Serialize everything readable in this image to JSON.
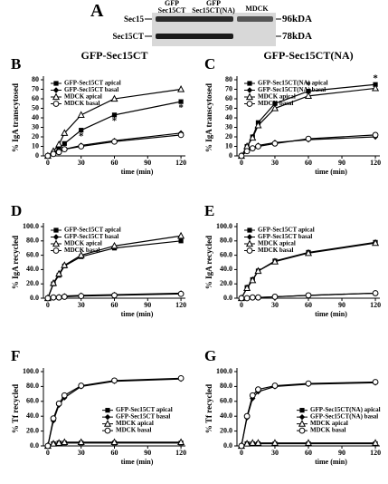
{
  "blot": {
    "label": "A",
    "lanes": [
      "GFP Sec15CT",
      "GFP Sec15CT(NA)",
      "MDCK"
    ],
    "bands": [
      "Sec15",
      "Sec15CT"
    ],
    "sizes": [
      "96kDA",
      "78kDA"
    ]
  },
  "chart_data": [
    {
      "type": "line",
      "label": "B",
      "title": "GFP-Sec15CT",
      "x_label": "time (min)",
      "y_label": "% IgA transcytosed",
      "x": [
        0,
        5,
        10,
        15,
        30,
        60,
        120
      ],
      "xlim": [
        -4,
        124
      ],
      "xticks": [
        0,
        30,
        60,
        90,
        120
      ],
      "ylim": [
        0,
        80
      ],
      "yticks": [
        0,
        10,
        20,
        30,
        40,
        50,
        60,
        70,
        80
      ],
      "legend": "upper left",
      "series": [
        {
          "name": "GFP-Sec15CT apical",
          "color": "#000000",
          "marker": "square",
          "values": [
            0,
            3,
            8,
            13,
            27,
            43,
            57
          ]
        },
        {
          "name": "GFP-Sec15CT basal",
          "color": "#000000",
          "marker": "diamond",
          "values": [
            0,
            2,
            4,
            7,
            11,
            16,
            24
          ]
        },
        {
          "name": "MDCK apical",
          "color": "#000000",
          "marker": "triangle",
          "values": [
            0,
            5,
            12,
            24,
            43,
            60,
            70
          ]
        },
        {
          "name": "MDCK basal",
          "color": "#000000",
          "marker": "circle",
          "values": [
            0,
            2,
            4,
            7,
            10,
            15,
            22
          ]
        }
      ],
      "annotations": [
        {
          "text": "*",
          "x": 30,
          "y": 20
        },
        {
          "text": "*",
          "x": 60,
          "y": 36
        },
        {
          "text": "*",
          "x": 120,
          "y": 50
        }
      ]
    },
    {
      "type": "line",
      "label": "C",
      "title": "GFP-Sec15CT(NA)",
      "x_label": "time (min)",
      "y_label": "% IgA transcytosed",
      "x": [
        0,
        5,
        10,
        15,
        30,
        60,
        120
      ],
      "xlim": [
        -4,
        124
      ],
      "xticks": [
        0,
        30,
        60,
        90,
        120
      ],
      "ylim": [
        0,
        80
      ],
      "yticks": [
        0,
        10,
        20,
        30,
        40,
        50,
        60,
        70,
        80
      ],
      "legend": "upper left",
      "series": [
        {
          "name": "GFP-Sec15CT(NA) apical",
          "color": "#000000",
          "marker": "square",
          "values": [
            0,
            10,
            20,
            35,
            55,
            68,
            75
          ]
        },
        {
          "name": "GFP-Sec15CT(NA) basal",
          "color": "#000000",
          "marker": "diamond",
          "values": [
            0,
            5,
            8,
            11,
            14,
            17,
            20
          ]
        },
        {
          "name": "MDCK apical",
          "color": "#000000",
          "marker": "triangle",
          "values": [
            0,
            10,
            19,
            32,
            50,
            63,
            71
          ]
        },
        {
          "name": "MDCK basal",
          "color": "#000000",
          "marker": "circle",
          "values": [
            0,
            5,
            8,
            10,
            13,
            18,
            22
          ]
        }
      ],
      "annotations": [
        {
          "text": "*",
          "x": 60,
          "y": 74
        },
        {
          "text": "*",
          "x": 120,
          "y": 81
        }
      ]
    },
    {
      "type": "line",
      "label": "D",
      "x_label": "time (min)",
      "y_label": "% IgA recycled",
      "x": [
        0,
        5,
        10,
        15,
        30,
        60,
        120
      ],
      "xlim": [
        -4,
        124
      ],
      "xticks": [
        0,
        30,
        60,
        90,
        120
      ],
      "ylim": [
        0,
        100
      ],
      "yticks": [
        {
          "value": 0,
          "label": "0.0"
        },
        {
          "value": 20,
          "label": "20.0"
        },
        {
          "value": 40,
          "label": "40.0"
        },
        {
          "value": 60,
          "label": "60.0"
        },
        {
          "value": 80,
          "label": "80.0"
        },
        {
          "value": 100,
          "label": "100.0"
        }
      ],
      "legend": "upper left",
      "series": [
        {
          "name": "GFP-Sec15CT apical",
          "color": "#000000",
          "marker": "square",
          "values": [
            0,
            20,
            32,
            45,
            58,
            70,
            80
          ]
        },
        {
          "name": "GFP-Sec15CT basal",
          "color": "#000000",
          "marker": "diamond",
          "values": [
            0,
            1,
            2,
            3,
            4,
            5,
            7
          ]
        },
        {
          "name": "MDCK apical",
          "color": "#000000",
          "marker": "triangle",
          "values": [
            0,
            21,
            34,
            46,
            60,
            73,
            87
          ]
        },
        {
          "name": "MDCK basal",
          "color": "#000000",
          "marker": "circle",
          "values": [
            0,
            1,
            1,
            2,
            3,
            4,
            6
          ]
        }
      ]
    },
    {
      "type": "line",
      "label": "E",
      "x_label": "time (min)",
      "y_label": "% IgA recycled",
      "x": [
        0,
        5,
        10,
        15,
        30,
        60,
        120
      ],
      "xlim": [
        -4,
        124
      ],
      "xticks": [
        0,
        30,
        60,
        90,
        120
      ],
      "ylim": [
        0,
        100
      ],
      "yticks": [
        {
          "value": 0,
          "label": "0.0"
        },
        {
          "value": 20,
          "label": "20.0"
        },
        {
          "value": 40,
          "label": "40.0"
        },
        {
          "value": 60,
          "label": "60.0"
        },
        {
          "value": 80,
          "label": "80.0"
        },
        {
          "value": 100,
          "label": "100.0"
        }
      ],
      "legend": "upper left",
      "series": [
        {
          "name": "GFP-Sec15CT apical",
          "color": "#000000",
          "marker": "square",
          "values": [
            0,
            15,
            26,
            38,
            52,
            64,
            78
          ]
        },
        {
          "name": "GFP-Sec15CT basal",
          "color": "#000000",
          "marker": "diamond",
          "values": [
            0,
            0,
            1,
            1,
            2,
            4,
            7
          ]
        },
        {
          "name": "MDCK apical",
          "color": "#000000",
          "marker": "triangle",
          "values": [
            0,
            14,
            25,
            38,
            51,
            63,
            77
          ]
        },
        {
          "name": "MDCK basal",
          "color": "#000000",
          "marker": "circle",
          "values": [
            0,
            0,
            1,
            1,
            2,
            4,
            7
          ]
        }
      ]
    },
    {
      "type": "line",
      "label": "F",
      "x_label": "time (min)",
      "y_label": "% Tf recycled",
      "x": [
        0,
        5,
        10,
        15,
        30,
        60,
        120
      ],
      "xlim": [
        -4,
        124
      ],
      "xticks": [
        0,
        30,
        60,
        90,
        120
      ],
      "ylim": [
        0,
        100
      ],
      "yticks": [
        {
          "value": 0,
          "label": "0.0"
        },
        {
          "value": 20,
          "label": "20.0"
        },
        {
          "value": 40,
          "label": "40.0"
        },
        {
          "value": 60,
          "label": "60.0"
        },
        {
          "value": 80,
          "label": "80.0"
        },
        {
          "value": 100,
          "label": "100.0"
        }
      ],
      "legend": "center right",
      "series": [
        {
          "name": "GFP-Sec15CT apical",
          "color": "#000000",
          "marker": "square",
          "values": [
            0,
            3,
            4,
            4,
            4,
            4,
            4
          ]
        },
        {
          "name": "GFP-Sec15CT basal",
          "color": "#000000",
          "marker": "diamond",
          "values": [
            0,
            34,
            55,
            65,
            80,
            87,
            90
          ]
        },
        {
          "name": "MDCK apical",
          "color": "#000000",
          "marker": "triangle",
          "values": [
            0,
            3,
            4,
            5,
            5,
            5,
            5
          ]
        },
        {
          "name": "MDCK basal",
          "color": "#000000",
          "marker": "circle",
          "values": [
            0,
            37,
            57,
            68,
            81,
            88,
            91
          ]
        }
      ]
    },
    {
      "type": "line",
      "label": "G",
      "x_label": "time (min)",
      "y_label": "% Tf recycled",
      "x": [
        0,
        5,
        10,
        15,
        30,
        60,
        120
      ],
      "xlim": [
        -4,
        124
      ],
      "xticks": [
        0,
        30,
        60,
        90,
        120
      ],
      "ylim": [
        0,
        100
      ],
      "yticks": [
        {
          "value": 0,
          "label": "0.0"
        },
        {
          "value": 20,
          "label": "20.0"
        },
        {
          "value": 40,
          "label": "40.0"
        },
        {
          "value": 60,
          "label": "60.0"
        },
        {
          "value": 80,
          "label": "80.0"
        },
        {
          "value": 100,
          "label": "100.0"
        }
      ],
      "legend": "center right",
      "series": [
        {
          "name": "GFP-Sec15CT(NA) apical",
          "color": "#000000",
          "marker": "square",
          "values": [
            0,
            3,
            3,
            3,
            3,
            3,
            3
          ]
        },
        {
          "name": "GFP-Sec15CT(NA) basal",
          "color": "#000000",
          "marker": "diamond",
          "values": [
            0,
            38,
            64,
            73,
            80,
            83,
            85
          ]
        },
        {
          "name": "MDCK apical",
          "color": "#000000",
          "marker": "triangle",
          "values": [
            0,
            3,
            4,
            4,
            4,
            4,
            4
          ]
        },
        {
          "name": "MDCK basal",
          "color": "#000000",
          "marker": "circle",
          "values": [
            0,
            40,
            68,
            76,
            81,
            84,
            86
          ]
        }
      ]
    }
  ]
}
